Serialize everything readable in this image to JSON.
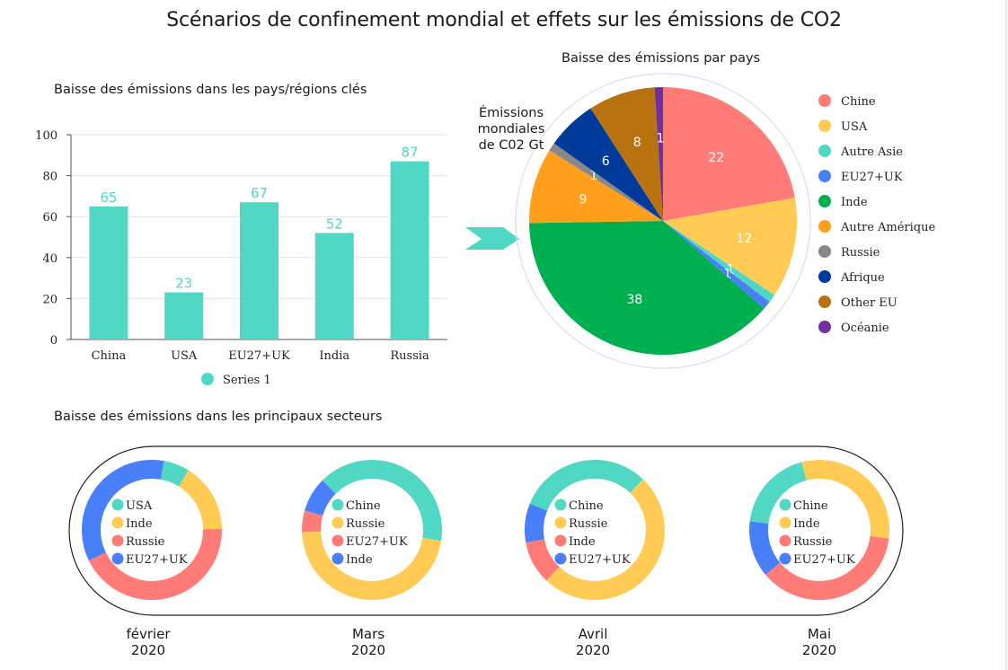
{
  "title": "Scénarios de confinement mondial et effets sur les émissions de CO2",
  "colors": {
    "teal": "#50d8c4",
    "salmon": "#ff7b77",
    "yellow": "#ffcb55",
    "blue": "#4a7ffa",
    "green": "#00b050",
    "orange": "#ff9f1c",
    "gray": "#888888",
    "navy": "#003a9b",
    "brown": "#b87210",
    "purple": "#7030a0"
  },
  "arrow_icon": "chevron-right-icon",
  "sectors_title": "Baisse des émissions dans les principaux secteurs",
  "chart_data": [
    {
      "type": "bar",
      "title": "Baisse des émissions dans les pays/régions clés",
      "categories": [
        "China",
        "USA",
        "EU27+UK",
        "India",
        "Russia"
      ],
      "series": [
        {
          "name": "Series 1",
          "values": [
            65,
            23,
            67,
            52,
            87
          ],
          "color": "#50d8c4"
        }
      ],
      "yticks": [
        0,
        20,
        40,
        60,
        80,
        100
      ],
      "ylim": [
        0,
        100
      ],
      "xlabel": "",
      "ylabel": "",
      "grid": true,
      "legend": "bottom"
    },
    {
      "type": "pie",
      "title": "Baisse des émissions par pays",
      "annotation": [
        "Émissions",
        "mondiales",
        "de C02 Gt"
      ],
      "labels": [
        "Chine",
        "USA",
        "Autre Asie",
        "EU27+UK",
        "Inde",
        "Autre Amérique",
        "Russie",
        "Afrique",
        "Other EU",
        "Océanie"
      ],
      "values": [
        22,
        12,
        1,
        1,
        38,
        9,
        1,
        6,
        8,
        1
      ],
      "colors": [
        "#ff7b77",
        "#ffcb55",
        "#50d8c4",
        "#4a7ffa",
        "#00b050",
        "#ff9f1c",
        "#888888",
        "#003a9b",
        "#b87210",
        "#7030a0"
      ],
      "legend": "right"
    },
    {
      "type": "pie",
      "subtype": "donut",
      "period": [
        "février",
        "2020"
      ],
      "labels": [
        "USA",
        "Inde",
        "Russie",
        "EU27+UK"
      ],
      "values": [
        6,
        16,
        43,
        35
      ],
      "colors": [
        "#50d8c4",
        "#ffcb55",
        "#ff7b77",
        "#4a7ffa"
      ],
      "legend": "center"
    },
    {
      "type": "pie",
      "subtype": "donut",
      "period": [
        "Mars",
        "2020"
      ],
      "labels": [
        "Chine",
        "Russie",
        "EU27+UK",
        "Inde"
      ],
      "values": [
        40,
        47,
        5,
        8
      ],
      "colors": [
        "#50d8c4",
        "#ffcb55",
        "#ff7b77",
        "#4a7ffa"
      ],
      "legend": "center"
    },
    {
      "type": "pie",
      "subtype": "donut",
      "period": [
        "Avril",
        "2020"
      ],
      "labels": [
        "Chine",
        "Russie",
        "Inde",
        "EU27+UK"
      ],
      "values": [
        31,
        50,
        10,
        9
      ],
      "colors": [
        "#50d8c4",
        "#ffcb55",
        "#ff7b77",
        "#4a7ffa"
      ],
      "legend": "center"
    },
    {
      "type": "pie",
      "subtype": "donut",
      "period": [
        "Mai",
        "2020"
      ],
      "labels": [
        "Chine",
        "Inde",
        "Russie",
        "EU27+UK"
      ],
      "values": [
        19,
        31,
        37,
        13
      ],
      "colors": [
        "#50d8c4",
        "#ffcb55",
        "#ff7b77",
        "#4a7ffa"
      ],
      "legend": "center"
    }
  ]
}
